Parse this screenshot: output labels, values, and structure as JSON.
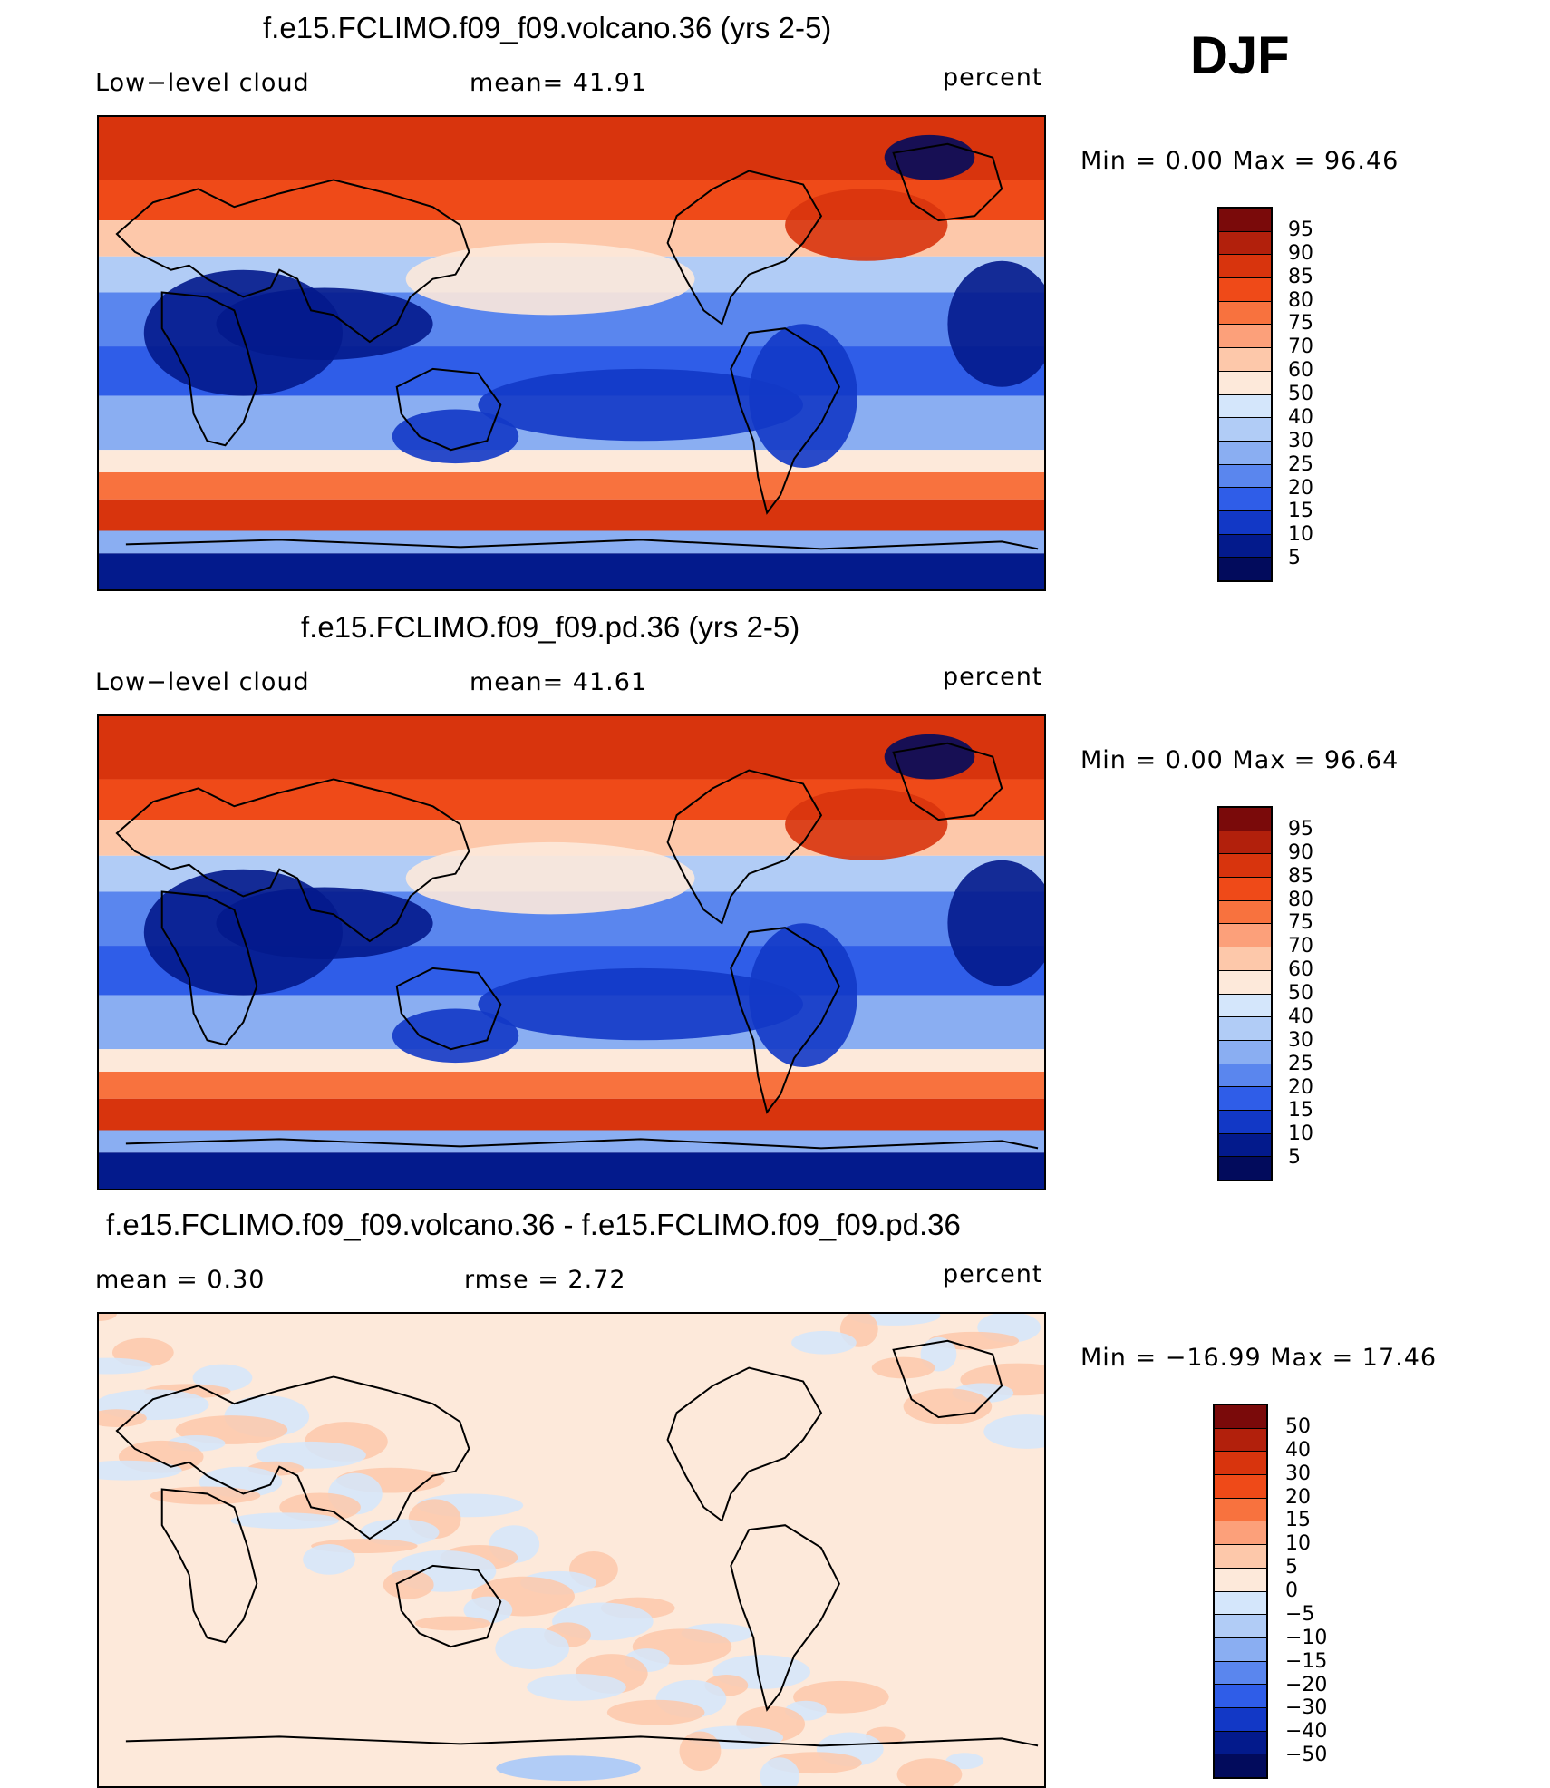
{
  "season": "DJF",
  "panels": [
    {
      "title": "f.e15.FCLIMO.f09_f09.volcano.36 (yrs 2-5)",
      "left_label": "Low−level cloud",
      "mid_label": "mean=   41.91",
      "units": "percent",
      "minmax": "Min =    0.00 Max =   96.46",
      "kind": "abs",
      "levels": [
        "95",
        "90",
        "85",
        "80",
        "75",
        "70",
        "60",
        "50",
        "40",
        "30",
        "25",
        "20",
        "15",
        "10",
        "5"
      ]
    },
    {
      "title": "f.e15.FCLIMO.f09_f09.pd.36 (yrs 2-5)",
      "left_label": "Low−level cloud",
      "mid_label": "mean=   41.61",
      "units": "percent",
      "minmax": "Min =    0.00 Max =   96.64",
      "kind": "abs",
      "levels": [
        "95",
        "90",
        "85",
        "80",
        "75",
        "70",
        "60",
        "50",
        "40",
        "30",
        "25",
        "20",
        "15",
        "10",
        "5"
      ]
    },
    {
      "title": "f.e15.FCLIMO.f09_f09.volcano.36 - f.e15.FCLIMO.f09_f09.pd.36",
      "left_label": "mean =    0.30",
      "mid_label": "rmse =    2.72",
      "units": "percent",
      "minmax": "Min = −16.99 Max =   17.46",
      "kind": "diff",
      "levels": [
        "50",
        "40",
        "30",
        "20",
        "15",
        "10",
        "5",
        "0",
        "−5",
        "−10",
        "−15",
        "−20",
        "−30",
        "−40",
        "−50"
      ]
    }
  ],
  "colors": {
    "abs_scale": [
      "#7a0a0a",
      "#b2200c",
      "#d8340d",
      "#ef4a18",
      "#f8723e",
      "#fca07a",
      "#fdc8aa",
      "#fde9da",
      "#d4e6fb",
      "#b1ccf6",
      "#8aaef2",
      "#5a86ee",
      "#2f5de8",
      "#1238c6",
      "#031a8c",
      "#020b5c"
    ],
    "diff_scale": [
      "#7a0a0a",
      "#b2200c",
      "#d8340d",
      "#ef4a18",
      "#f8723e",
      "#fca07a",
      "#fdc8aa",
      "#fde9da",
      "#d4e6fb",
      "#b1ccf6",
      "#8aaef2",
      "#5a86ee",
      "#2f5de8",
      "#1238c6",
      "#031a8c",
      "#020b5c"
    ]
  }
}
